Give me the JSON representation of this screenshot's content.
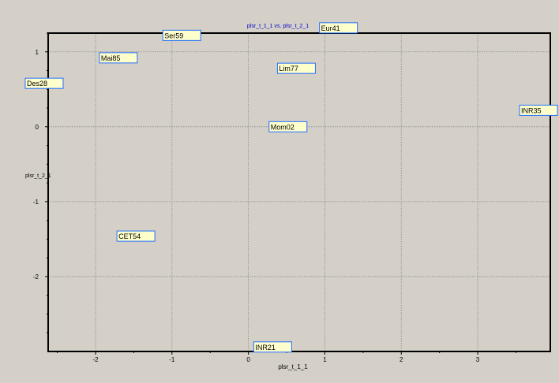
{
  "chart_data": {
    "type": "scatter",
    "title": "plsr_t_1_1 vs. plsr_t_2_1",
    "xlabel": "plsr_t_1_1",
    "ylabel": "plsr_t_2_1",
    "xlim": [
      -2.62,
      3.95
    ],
    "ylim": [
      -3.0,
      1.25
    ],
    "xticks": [
      -2,
      -1,
      0,
      1,
      2,
      3
    ],
    "yticks": [
      1,
      0,
      -1,
      -2
    ],
    "grid": true,
    "points": [
      {
        "label": "Ser59",
        "x": -1.12,
        "y": 1.22
      },
      {
        "label": "Eur41",
        "x": 0.93,
        "y": 1.32
      },
      {
        "label": "Mai85",
        "x": -1.95,
        "y": 0.92
      },
      {
        "label": "Lim77",
        "x": 0.38,
        "y": 0.78
      },
      {
        "label": "Des28",
        "x": -2.92,
        "y": 0.58
      },
      {
        "label": "INR35",
        "x": 3.75,
        "y": 0.22
      },
      {
        "label": "Mom02",
        "x": 0.27,
        "y": 0.0
      },
      {
        "label": "CET54",
        "x": -1.72,
        "y": -1.46
      },
      {
        "label": "INR21",
        "x": 0.07,
        "y": -2.94
      }
    ],
    "colors": {
      "background": "#d4d0c8",
      "plot_border": "#000000",
      "grid": "#8a8a8a",
      "title": "#0000cc",
      "label_fill": "#ffffcc",
      "label_border": "#1f6fff",
      "text": "#000000"
    }
  }
}
